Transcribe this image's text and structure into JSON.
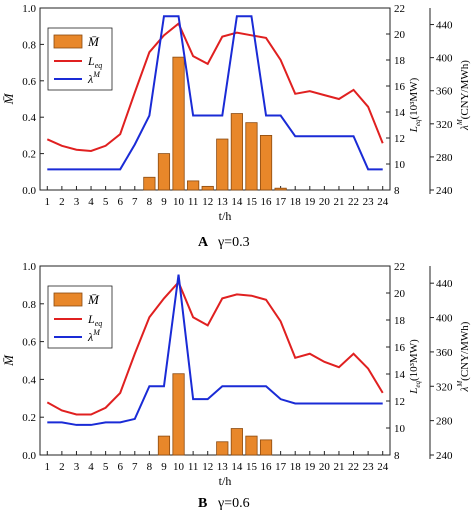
{
  "chart_data": [
    {
      "panel_letter": "A",
      "caption": "γ=0.3",
      "type": "bar",
      "x": [
        1,
        2,
        3,
        4,
        5,
        6,
        7,
        8,
        9,
        10,
        11,
        12,
        13,
        14,
        15,
        16,
        17,
        18,
        19,
        20,
        21,
        22,
        23,
        24
      ],
      "xlabel": "t/h",
      "ylabel": "M̄",
      "ylim": [
        0,
        1.0
      ],
      "y_ticks": [
        "0.0",
        "0.2",
        "0.4",
        "0.6",
        "0.8",
        "1.0"
      ],
      "y2_label": "L_eq(10³MW)",
      "y2lim": [
        8,
        22
      ],
      "y2_ticks": [
        "8",
        "10",
        "12",
        "14",
        "16",
        "18",
        "20",
        "22"
      ],
      "y3_label": "λ^M(CNY/MWh)",
      "y3lim": [
        240,
        460
      ],
      "y3_ticks": [
        "240",
        "280",
        "320",
        "360",
        "400",
        "440"
      ],
      "legend": [
        "M̄",
        "L_eq",
        "λ^M"
      ],
      "colors": {
        "bar": "#e8872a",
        "bar_edge": "#8a4a10",
        "leq": "#e02020",
        "lambda": "#1a2bd6"
      },
      "series": [
        {
          "name": "M̄",
          "type": "bar",
          "axis": "left",
          "values": [
            0,
            0,
            0,
            0,
            0,
            0,
            0,
            0.07,
            0.2,
            0.73,
            0.05,
            0.02,
            0.28,
            0.42,
            0.37,
            0.3,
            0.01,
            0,
            0,
            0,
            0,
            0,
            0,
            0
          ]
        },
        {
          "name": "L_eq",
          "type": "line",
          "axis": "right",
          "values": [
            11.9,
            11.4,
            11.1,
            11.0,
            11.4,
            12.3,
            15.5,
            18.6,
            19.9,
            20.8,
            18.3,
            17.7,
            19.8,
            20.1,
            19.9,
            19.7,
            18.0,
            15.4,
            15.6,
            15.3,
            15.0,
            15.7,
            14.4,
            11.6
          ]
        },
        {
          "name": "λ^M",
          "type": "line",
          "axis": "far-right",
          "values": [
            265,
            265,
            265,
            265,
            265,
            265,
            295,
            330,
            450,
            450,
            330,
            330,
            330,
            450,
            450,
            330,
            330,
            305,
            305,
            305,
            305,
            305,
            265,
            265
          ]
        }
      ]
    },
    {
      "panel_letter": "B",
      "caption": "γ=0.6",
      "type": "bar",
      "x": [
        1,
        2,
        3,
        4,
        5,
        6,
        7,
        8,
        9,
        10,
        11,
        12,
        13,
        14,
        15,
        16,
        17,
        18,
        19,
        20,
        21,
        22,
        23,
        24
      ],
      "xlabel": "t/h",
      "ylabel": "M̄",
      "ylim": [
        0,
        1.0
      ],
      "y_ticks": [
        "0.0",
        "0.2",
        "0.4",
        "0.6",
        "0.8",
        "1.0"
      ],
      "y2_label": "L_eq(10³MW)",
      "y2lim": [
        8,
        22
      ],
      "y2_ticks": [
        "8",
        "10",
        "12",
        "14",
        "16",
        "18",
        "20",
        "22"
      ],
      "y3_label": "λ^M(CNY/MWh)",
      "y3lim": [
        240,
        460
      ],
      "y3_ticks": [
        "240",
        "280",
        "320",
        "360",
        "400",
        "440"
      ],
      "legend": [
        "M̄",
        "L_eq",
        "λ^M"
      ],
      "colors": {
        "bar": "#e8872a",
        "bar_edge": "#8a4a10",
        "leq": "#e02020",
        "lambda": "#1a2bd6"
      },
      "series": [
        {
          "name": "M̄",
          "type": "bar",
          "axis": "left",
          "values": [
            0,
            0,
            0,
            0,
            0,
            0,
            0,
            0,
            0.1,
            0.43,
            0,
            0,
            0.07,
            0.14,
            0.1,
            0.08,
            0,
            0,
            0,
            0,
            0,
            0,
            0,
            0
          ]
        },
        {
          "name": "L_eq",
          "type": "line",
          "axis": "right",
          "values": [
            11.9,
            11.3,
            11.0,
            11.0,
            11.5,
            12.6,
            15.5,
            18.2,
            19.6,
            20.8,
            18.2,
            17.6,
            19.6,
            19.9,
            19.8,
            19.5,
            17.9,
            15.2,
            15.5,
            14.9,
            14.5,
            15.5,
            14.4,
            12.6
          ]
        },
        {
          "name": "λ^M",
          "type": "line",
          "axis": "far-right",
          "values": [
            278,
            278,
            275,
            275,
            278,
            278,
            282,
            320,
            320,
            450,
            305,
            305,
            320,
            320,
            320,
            320,
            305,
            300,
            300,
            300,
            300,
            300,
            300,
            300
          ]
        }
      ]
    }
  ]
}
